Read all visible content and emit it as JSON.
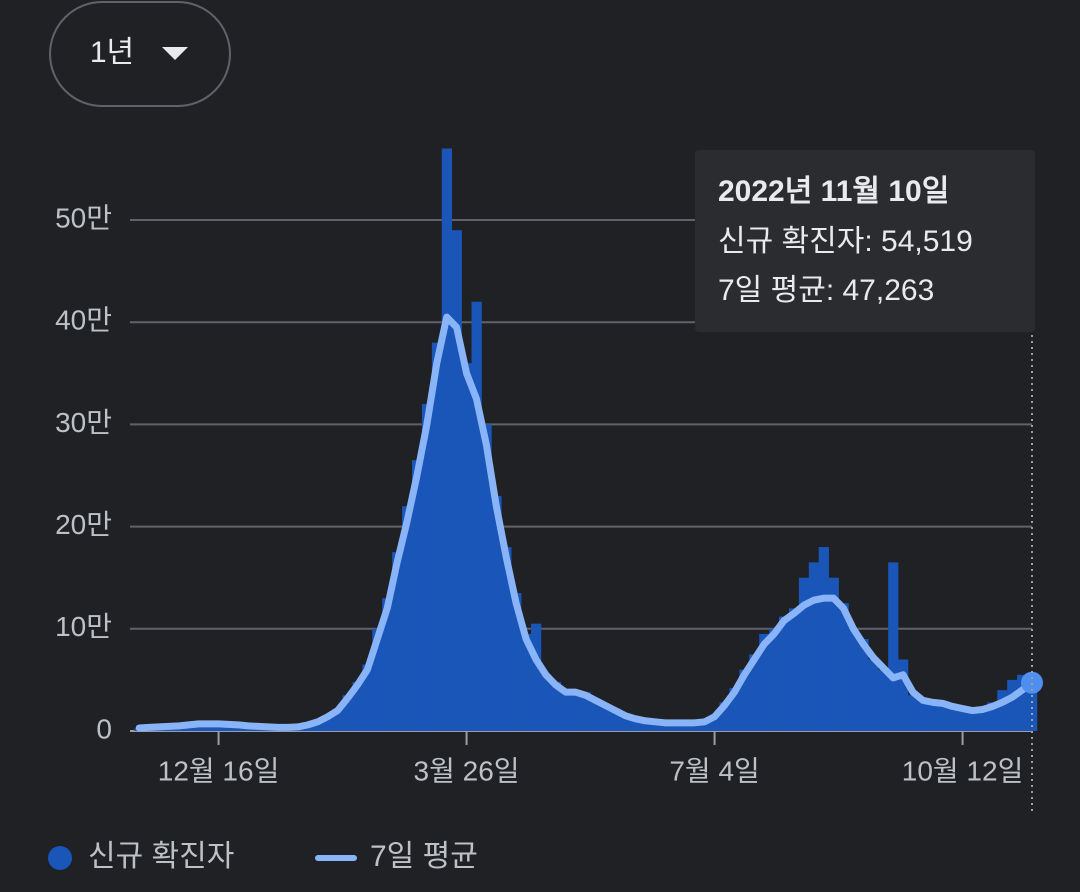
{
  "range_button": "1년",
  "tooltip": {
    "date": "2022년 11월 10일",
    "rows": [
      "신규 확진자: 54,519",
      "7일 평균: 47,263"
    ]
  },
  "chart_data": {
    "type": "bar_line",
    "categories": [
      null,
      null,
      null,
      null,
      null,
      null,
      null,
      null,
      "12월 16일",
      null,
      null,
      null,
      null,
      null,
      null,
      null,
      null,
      null,
      null,
      null,
      null,
      null,
      null,
      null,
      null,
      null,
      null,
      null,
      null,
      null,
      null,
      null,
      null,
      "3월 26일",
      null,
      null,
      null,
      null,
      null,
      null,
      null,
      null,
      null,
      null,
      null,
      null,
      null,
      null,
      null,
      null,
      null,
      null,
      null,
      null,
      null,
      null,
      null,
      null,
      "7월 4일",
      null,
      null,
      null,
      null,
      null,
      null,
      null,
      null,
      null,
      null,
      null,
      null,
      null,
      null,
      null,
      null,
      null,
      null,
      null,
      null,
      null,
      null,
      null,
      null,
      "10월 12일",
      null,
      null,
      null,
      null,
      null,
      null,
      null
    ],
    "series": [
      {
        "name": "신규 확진자",
        "color": "#1a55b8",
        "kind": "bar",
        "values": [
          2500,
          3000,
          3500,
          4500,
          5000,
          6500,
          7500,
          7000,
          7500,
          6000,
          6000,
          5000,
          4500,
          4000,
          3000,
          3500,
          4000,
          6000,
          10000,
          15000,
          22000,
          35000,
          48000,
          65000,
          100000,
          130000,
          175000,
          220000,
          265000,
          320000,
          380000,
          570000,
          490000,
          360000,
          420000,
          300000,
          230000,
          180000,
          135000,
          95000,
          105000,
          55000,
          48000,
          40000,
          36000,
          38000,
          30000,
          26000,
          22000,
          15000,
          12000,
          10000,
          9000,
          8000,
          8000,
          8000,
          9000,
          10000,
          15000,
          28000,
          42000,
          60000,
          75000,
          95000,
          100000,
          112000,
          120000,
          150000,
          165000,
          180000,
          150000,
          125000,
          100000,
          90000,
          70000,
          60000,
          165000,
          70000,
          35000,
          30000,
          28000,
          28000,
          25000,
          22000,
          20000,
          22000,
          28000,
          40000,
          50000,
          55000,
          54519
        ]
      },
      {
        "name": "7일 평균",
        "color": "#8ab4f8",
        "kind": "line",
        "values": [
          3000,
          3500,
          4000,
          4500,
          5000,
          6000,
          7000,
          7000,
          7000,
          6500,
          6000,
          5000,
          4500,
          4000,
          3500,
          3500,
          4000,
          6000,
          9000,
          14000,
          20000,
          32000,
          45000,
          60000,
          90000,
          120000,
          165000,
          205000,
          250000,
          300000,
          360000,
          405000,
          395000,
          350000,
          325000,
          280000,
          220000,
          170000,
          125000,
          90000,
          70000,
          55000,
          45000,
          38000,
          38000,
          35000,
          30000,
          25000,
          20000,
          15000,
          12000,
          10000,
          9000,
          8000,
          8000,
          8000,
          8000,
          9000,
          14000,
          25000,
          38000,
          55000,
          70000,
          85000,
          95000,
          108000,
          115000,
          123000,
          128000,
          130000,
          130000,
          120000,
          100000,
          85000,
          72000,
          62000,
          52000,
          55000,
          38000,
          30000,
          28000,
          27000,
          24000,
          22000,
          20000,
          21000,
          24000,
          28000,
          33000,
          40000,
          47263
        ]
      }
    ],
    "ylim": [
      0,
      560000
    ],
    "yticks": [
      0,
      {
        "value": 100000,
        "label": "10만"
      },
      {
        "value": 200000,
        "label": "20만"
      },
      {
        "value": 300000,
        "label": "30만"
      },
      {
        "value": 400000,
        "label": "40만"
      },
      {
        "value": 500000,
        "label": "50만"
      }
    ],
    "grid": true
  }
}
